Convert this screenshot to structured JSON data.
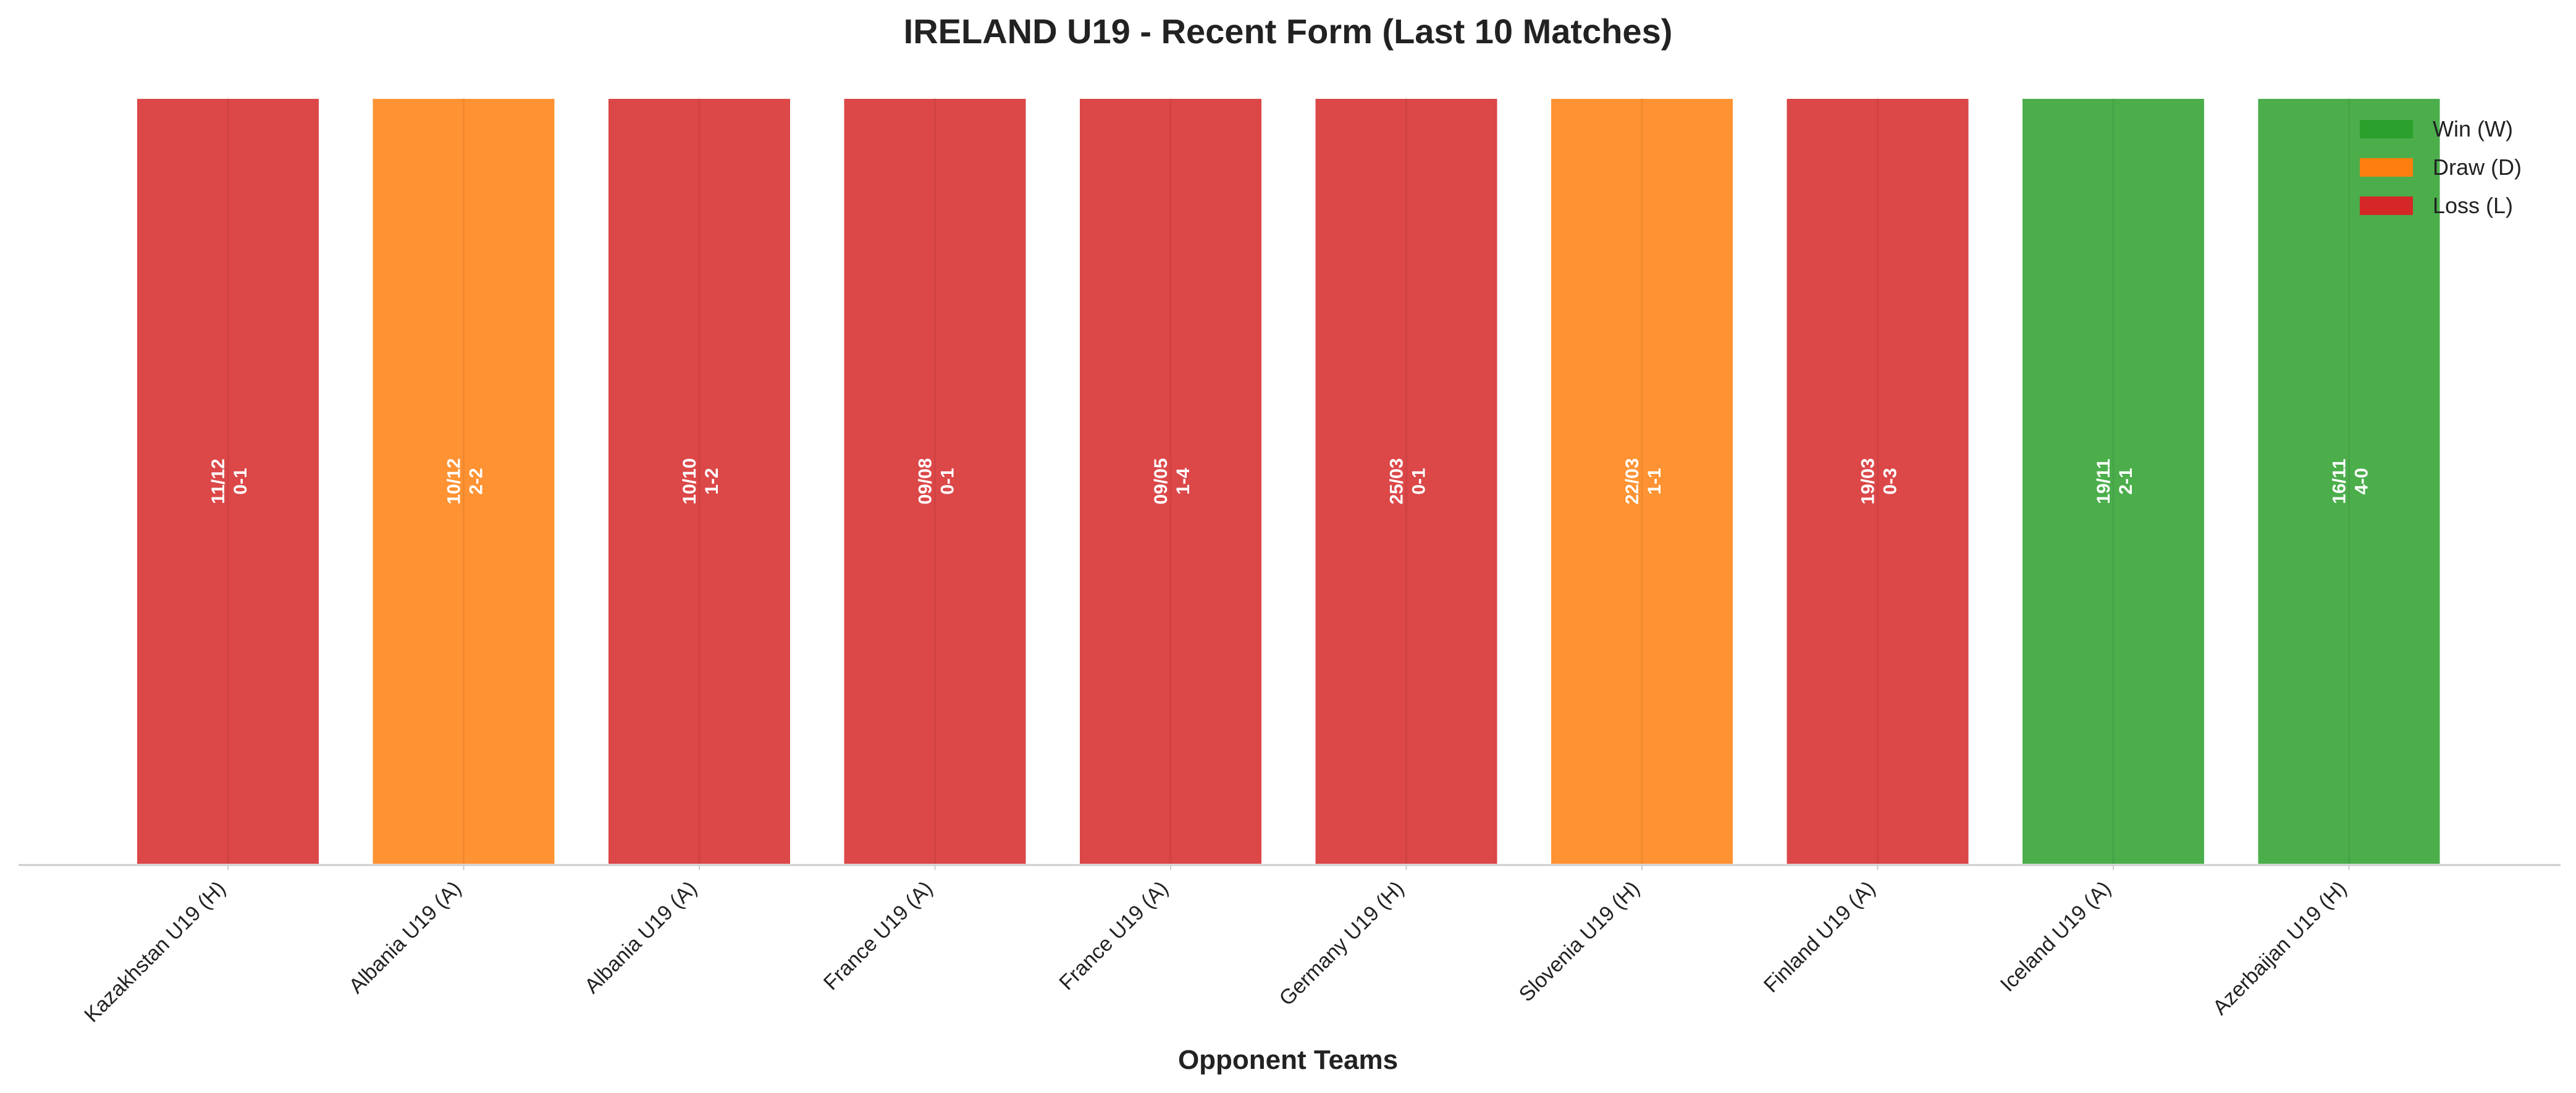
{
  "chart_data": {
    "type": "bar",
    "title": "IRELAND U19 - Recent Form (Last 10 Matches)",
    "xlabel": "Opponent Teams",
    "ylabel": "",
    "categories": [
      "Kazakhstan U19 (H)",
      "Albania U19 (A)",
      "Albania U19 (A)",
      "France U19 (A)",
      "France U19 (A)",
      "Germany U19 (H)",
      "Slovenia U19 (H)",
      "Finland U19 (A)",
      "Iceland U19 (A)",
      "Azerbaijan U19 (H)"
    ],
    "values": [
      1,
      1,
      1,
      1,
      1,
      1,
      1,
      1,
      1,
      1
    ],
    "results": [
      "L",
      "D",
      "L",
      "L",
      "L",
      "L",
      "D",
      "L",
      "W",
      "W"
    ],
    "dates": [
      "11/12",
      "10/12",
      "10/10",
      "09/08",
      "09/05",
      "25/03",
      "22/03",
      "19/03",
      "19/11",
      "16/11"
    ],
    "scores": [
      "0-1",
      "2-2",
      "1-2",
      "0-1",
      "1-4",
      "0-1",
      "1-1",
      "0-3",
      "2-1",
      "4-0"
    ],
    "ylim": [
      0,
      1
    ],
    "grid": false,
    "legend_position": "top-right",
    "legend": [
      {
        "key": "W",
        "label": "Win (W)",
        "color": "#2ca02c"
      },
      {
        "key": "D",
        "label": "Draw (D)",
        "color": "#ff7f0e"
      },
      {
        "key": "L",
        "label": "Loss (L)",
        "color": "#d62728"
      }
    ]
  }
}
